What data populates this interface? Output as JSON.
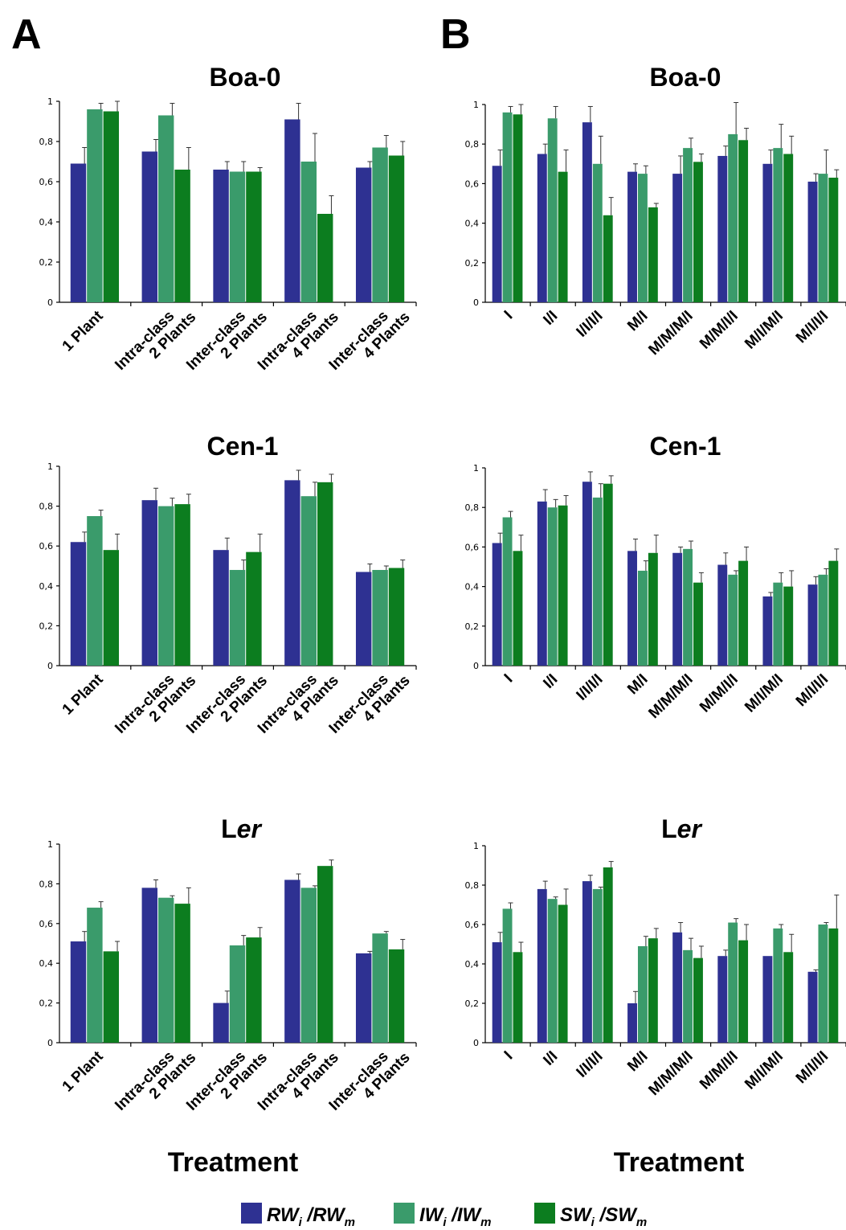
{
  "panel_letters": [
    "A",
    "B"
  ],
  "x_axis_title": "Treatment",
  "series_colors": {
    "RW": "#2e3192",
    "IW": "#3a9b6b",
    "SW": "#0c7d1f"
  },
  "legend": [
    {
      "key": "RW",
      "main": "RW",
      "sub": "i",
      "sep": " /",
      "main2": "RW",
      "sub2": "m"
    },
    {
      "key": "IW",
      "main": "IW",
      "sub": "i",
      "sep": " /",
      "main2": "IW",
      "sub2": "m"
    },
    {
      "key": "SW",
      "main": "SW",
      "sub": "i",
      "sep": " /",
      "main2": "SW",
      "sub2": "m"
    }
  ],
  "chart_data": [
    {
      "panel": "A",
      "type": "bar",
      "title": "Boa-0",
      "title_italic_part": "",
      "ylim": [
        0,
        1
      ],
      "yticks": [
        "0",
        "0,2",
        "0,4",
        "0,6",
        "0,8",
        "1"
      ],
      "categories": [
        [
          "1 Plant"
        ],
        [
          "Intra-class",
          "2 Plants"
        ],
        [
          "Inter-class",
          "2 Plants"
        ],
        [
          "Intra-class",
          "4 Plants"
        ],
        [
          "Inter-class",
          "4 Plants"
        ]
      ],
      "series": [
        {
          "key": "RW",
          "values": [
            0.69,
            0.75,
            0.66,
            0.91,
            0.67
          ],
          "errors": [
            0.08,
            0.06,
            0.04,
            0.08,
            0.03
          ]
        },
        {
          "key": "IW",
          "values": [
            0.96,
            0.93,
            0.65,
            0.7,
            0.77
          ],
          "errors": [
            0.03,
            0.06,
            0.05,
            0.14,
            0.06
          ]
        },
        {
          "key": "SW",
          "values": [
            0.95,
            0.66,
            0.65,
            0.44,
            0.73
          ],
          "errors": [
            0.05,
            0.11,
            0.02,
            0.09,
            0.07
          ]
        }
      ]
    },
    {
      "panel": "B",
      "type": "bar",
      "title": "Boa-0",
      "title_italic_part": "",
      "ylim": [
        0,
        1
      ],
      "yticks": [
        "0",
        "0,2",
        "0,4",
        "0,6",
        "0,8",
        "1"
      ],
      "categories": [
        [
          "I"
        ],
        [
          "I/I"
        ],
        [
          "I/I/I/I"
        ],
        [
          "M/I"
        ],
        [
          "M/M/M/I"
        ],
        [
          "M/M/I/I"
        ],
        [
          "M/I/M/I"
        ],
        [
          "M/I/I/I"
        ]
      ],
      "series": [
        {
          "key": "RW",
          "values": [
            0.69,
            0.75,
            0.91,
            0.66,
            0.65,
            0.74,
            0.7,
            0.61
          ],
          "errors": [
            0.08,
            0.05,
            0.08,
            0.04,
            0.09,
            0.05,
            0.07,
            0.04
          ]
        },
        {
          "key": "IW",
          "values": [
            0.96,
            0.93,
            0.7,
            0.65,
            0.78,
            0.85,
            0.78,
            0.65
          ],
          "errors": [
            0.03,
            0.06,
            0.14,
            0.04,
            0.05,
            0.16,
            0.12,
            0.12
          ]
        },
        {
          "key": "SW",
          "values": [
            0.95,
            0.66,
            0.44,
            0.48,
            0.71,
            0.82,
            0.75,
            0.63
          ],
          "errors": [
            0.05,
            0.11,
            0.09,
            0.02,
            0.04,
            0.06,
            0.09,
            0.04
          ]
        }
      ]
    },
    {
      "panel": "A",
      "type": "bar",
      "title": "Cen-1",
      "title_italic_part": "",
      "ylim": [
        0,
        1
      ],
      "yticks": [
        "0",
        "0,2",
        "0,4",
        "0,6",
        "0,8",
        "1"
      ],
      "categories": [
        [
          "1 Plant"
        ],
        [
          "Intra-class",
          "2 Plants"
        ],
        [
          "Inter-class",
          "2 Plants"
        ],
        [
          "Intra-class",
          "4 Plants"
        ],
        [
          "Inter-class",
          "4 Plants"
        ]
      ],
      "series": [
        {
          "key": "RW",
          "values": [
            0.62,
            0.83,
            0.58,
            0.93,
            0.47
          ],
          "errors": [
            0.05,
            0.06,
            0.06,
            0.05,
            0.04
          ]
        },
        {
          "key": "IW",
          "values": [
            0.75,
            0.8,
            0.48,
            0.85,
            0.48
          ],
          "errors": [
            0.03,
            0.04,
            0.05,
            0.07,
            0.02
          ]
        },
        {
          "key": "SW",
          "values": [
            0.58,
            0.81,
            0.57,
            0.92,
            0.49
          ],
          "errors": [
            0.08,
            0.05,
            0.09,
            0.04,
            0.04
          ]
        }
      ]
    },
    {
      "panel": "B",
      "type": "bar",
      "title": "Cen-1",
      "title_italic_part": "",
      "ylim": [
        0,
        1
      ],
      "yticks": [
        "0",
        "0,2",
        "0,4",
        "0,6",
        "0,8",
        "1"
      ],
      "categories": [
        [
          "I"
        ],
        [
          "I/I"
        ],
        [
          "I/I/I/I"
        ],
        [
          "M/I"
        ],
        [
          "M/M/M/I"
        ],
        [
          "M/M/I/I"
        ],
        [
          "M/I/M/I"
        ],
        [
          "M/I/I/I"
        ]
      ],
      "series": [
        {
          "key": "RW",
          "values": [
            0.62,
            0.83,
            0.93,
            0.58,
            0.57,
            0.51,
            0.35,
            0.41
          ],
          "errors": [
            0.05,
            0.06,
            0.05,
            0.06,
            0.03,
            0.06,
            0.02,
            0.04
          ]
        },
        {
          "key": "IW",
          "values": [
            0.75,
            0.8,
            0.85,
            0.48,
            0.59,
            0.46,
            0.42,
            0.46
          ],
          "errors": [
            0.03,
            0.04,
            0.07,
            0.05,
            0.04,
            0.02,
            0.05,
            0.03
          ]
        },
        {
          "key": "SW",
          "values": [
            0.58,
            0.81,
            0.92,
            0.57,
            0.42,
            0.53,
            0.4,
            0.53
          ],
          "errors": [
            0.08,
            0.05,
            0.04,
            0.09,
            0.05,
            0.07,
            0.08,
            0.06
          ]
        }
      ]
    },
    {
      "panel": "A",
      "type": "bar",
      "title": "L",
      "title_italic_part": "er",
      "ylim": [
        0,
        1
      ],
      "yticks": [
        "0",
        "0,2",
        "0,4",
        "0,6",
        "0,8",
        "1"
      ],
      "categories": [
        [
          "1 Plant"
        ],
        [
          "Intra-class",
          "2 Plants"
        ],
        [
          "Inter-class",
          "2 Plants"
        ],
        [
          "Intra-class",
          "4 Plants"
        ],
        [
          "Inter-class",
          "4 Plants"
        ]
      ],
      "series": [
        {
          "key": "RW",
          "values": [
            0.51,
            0.78,
            0.2,
            0.82,
            0.45
          ],
          "errors": [
            0.05,
            0.04,
            0.06,
            0.03,
            0.01
          ]
        },
        {
          "key": "IW",
          "values": [
            0.68,
            0.73,
            0.49,
            0.78,
            0.55
          ],
          "errors": [
            0.03,
            0.01,
            0.05,
            0.01,
            0.01
          ]
        },
        {
          "key": "SW",
          "values": [
            0.46,
            0.7,
            0.53,
            0.89,
            0.47
          ],
          "errors": [
            0.05,
            0.08,
            0.05,
            0.03,
            0.05
          ]
        }
      ]
    },
    {
      "panel": "B",
      "type": "bar",
      "title": "L",
      "title_italic_part": "er",
      "ylim": [
        0,
        1
      ],
      "yticks": [
        "0",
        "0,2",
        "0,4",
        "0,6",
        "0,8",
        "1"
      ],
      "categories": [
        [
          "I"
        ],
        [
          "I/I"
        ],
        [
          "I/I/I/I"
        ],
        [
          "M/I"
        ],
        [
          "M/M/M/I"
        ],
        [
          "M/M/I/I"
        ],
        [
          "M/I/M/I"
        ],
        [
          "M/I/I/I"
        ]
      ],
      "series": [
        {
          "key": "RW",
          "values": [
            0.51,
            0.78,
            0.82,
            0.2,
            0.56,
            0.44,
            0.44,
            0.36
          ],
          "errors": [
            0.05,
            0.04,
            0.03,
            0.06,
            0.05,
            0.03,
            0.0,
            0.01
          ]
        },
        {
          "key": "IW",
          "values": [
            0.68,
            0.73,
            0.78,
            0.49,
            0.47,
            0.61,
            0.58,
            0.6
          ],
          "errors": [
            0.03,
            0.01,
            0.01,
            0.05,
            0.06,
            0.02,
            0.02,
            0.01
          ]
        },
        {
          "key": "SW",
          "values": [
            0.46,
            0.7,
            0.89,
            0.53,
            0.43,
            0.52,
            0.46,
            0.58
          ],
          "errors": [
            0.05,
            0.08,
            0.03,
            0.05,
            0.06,
            0.08,
            0.09,
            0.17
          ]
        }
      ]
    }
  ]
}
